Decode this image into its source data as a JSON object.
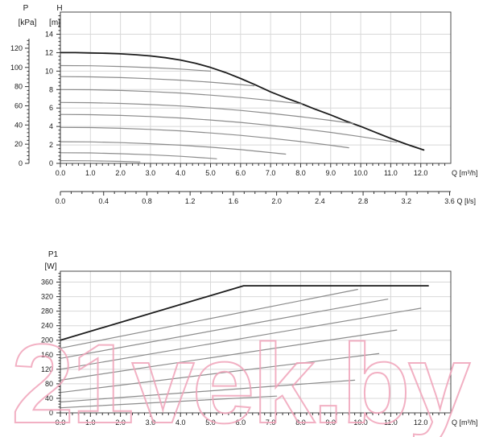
{
  "watermark": {
    "text": "21vek.by",
    "color": "rgba(240,162,184,0.85)"
  },
  "palette": {
    "max_curve": "#1c1c1c",
    "speed_curve": "#8c8c8c",
    "grid": "#d8d8d8",
    "frame": "#4a4a4a",
    "tick": "#333333"
  },
  "chart_data": [
    {
      "type": "line",
      "id": "head_capacity",
      "title": "",
      "legend": "none",
      "grid": "on",
      "x_axes": [
        {
          "label": "Q [m³/h]",
          "min": 0,
          "max": 13.0,
          "major_step": 1.0,
          "minor_step": 0.2,
          "labeled_max": 12,
          "decimals": 1
        },
        {
          "label": "Q [l/s]",
          "min": 0,
          "max": 3.6,
          "major_step": 0.4,
          "minor_step": 0.1,
          "labeled_max": 3.6,
          "decimals": 1,
          "to_primary_ratio": 3.6
        }
      ],
      "y_axes": [
        {
          "title": "P",
          "unit": "[kPa]",
          "min": 0,
          "max": 130,
          "major_step": 20,
          "minor_step": 4,
          "labeled_max": 120,
          "decimals": 0
        },
        {
          "title": "H",
          "unit": "[m]",
          "min": 0,
          "max": 16.4,
          "major_step": 2,
          "minor_step": 0.4,
          "labeled_max": 14,
          "decimals": 0
        }
      ],
      "series": [
        {
          "name": "max-curve",
          "role": "max",
          "points": [
            [
              0,
              12.0
            ],
            [
              0.5,
              12.0
            ],
            [
              1,
              11.97
            ],
            [
              1.5,
              11.93
            ],
            [
              2,
              11.87
            ],
            [
              2.5,
              11.78
            ],
            [
              3,
              11.65
            ],
            [
              3.5,
              11.45
            ],
            [
              4,
              11.2
            ],
            [
              4.5,
              10.85
            ],
            [
              5,
              10.4
            ],
            [
              5.5,
              9.85
            ],
            [
              6,
              9.2
            ],
            [
              6.5,
              8.5
            ],
            [
              7,
              7.75
            ],
            [
              7.5,
              7.1
            ],
            [
              8,
              6.5
            ],
            [
              8.5,
              5.85
            ],
            [
              9,
              5.25
            ],
            [
              9.5,
              4.6
            ],
            [
              10,
              4.0
            ],
            [
              10.5,
              3.35
            ],
            [
              11,
              2.7
            ],
            [
              11.5,
              2.1
            ],
            [
              12.1,
              1.45
            ]
          ]
        },
        {
          "name": "speed-curve-1",
          "role": "speed",
          "points": [
            [
              0,
              10.6
            ],
            [
              1,
              10.58
            ],
            [
              2,
              10.5
            ],
            [
              3,
              10.38
            ],
            [
              4,
              10.22
            ],
            [
              5,
              10.0
            ]
          ]
        },
        {
          "name": "speed-curve-2",
          "role": "speed",
          "points": [
            [
              0,
              9.4
            ],
            [
              1,
              9.38
            ],
            [
              2,
              9.3
            ],
            [
              3,
              9.18
            ],
            [
              4,
              9.02
            ],
            [
              5,
              8.8
            ],
            [
              6,
              8.54
            ],
            [
              6.45,
              8.4
            ]
          ]
        },
        {
          "name": "speed-curve-3",
          "role": "speed",
          "points": [
            [
              0,
              8.0
            ],
            [
              1,
              7.98
            ],
            [
              2,
              7.9
            ],
            [
              3,
              7.78
            ],
            [
              4,
              7.62
            ],
            [
              5,
              7.4
            ],
            [
              6,
              7.14
            ],
            [
              7,
              6.82
            ],
            [
              8.05,
              6.44
            ]
          ]
        },
        {
          "name": "speed-curve-4",
          "role": "speed",
          "points": [
            [
              0,
              6.6
            ],
            [
              1,
              6.58
            ],
            [
              2,
              6.5
            ],
            [
              3,
              6.38
            ],
            [
              4,
              6.22
            ],
            [
              5,
              6.0
            ],
            [
              6,
              5.74
            ],
            [
              7,
              5.42
            ],
            [
              8,
              5.06
            ],
            [
              9,
              4.66
            ],
            [
              9.75,
              4.32
            ]
          ]
        },
        {
          "name": "speed-curve-5",
          "role": "speed",
          "points": [
            [
              0,
              5.3
            ],
            [
              1,
              5.28
            ],
            [
              2,
              5.2
            ],
            [
              3,
              5.08
            ],
            [
              4,
              4.92
            ],
            [
              5,
              4.7
            ],
            [
              6,
              4.44
            ],
            [
              7,
              4.12
            ],
            [
              8,
              3.76
            ],
            [
              9,
              3.36
            ],
            [
              10,
              2.9
            ],
            [
              11.2,
              2.29
            ]
          ]
        },
        {
          "name": "speed-curve-6",
          "role": "speed",
          "points": [
            [
              0,
              3.9
            ],
            [
              1,
              3.88
            ],
            [
              2,
              3.8
            ],
            [
              3,
              3.68
            ],
            [
              4,
              3.52
            ],
            [
              5,
              3.3
            ],
            [
              6,
              3.04
            ],
            [
              7,
              2.72
            ],
            [
              8,
              2.36
            ],
            [
              9,
              1.96
            ],
            [
              9.6,
              1.69
            ]
          ]
        },
        {
          "name": "speed-curve-7",
          "role": "speed",
          "points": [
            [
              0,
              2.35
            ],
            [
              1,
              2.33
            ],
            [
              2,
              2.25
            ],
            [
              3,
              2.13
            ],
            [
              4,
              1.97
            ],
            [
              5,
              1.75
            ],
            [
              6,
              1.49
            ],
            [
              7,
              1.17
            ],
            [
              7.5,
              1.0
            ]
          ]
        },
        {
          "name": "speed-curve-8",
          "role": "speed",
          "points": [
            [
              0,
              1.15
            ],
            [
              1,
              1.13
            ],
            [
              2,
              1.05
            ],
            [
              3,
              0.93
            ],
            [
              4,
              0.77
            ],
            [
              5,
              0.55
            ],
            [
              5.2,
              0.5
            ]
          ]
        },
        {
          "name": "speed-curve-9",
          "role": "speed",
          "points": [
            [
              0,
              0.3
            ],
            [
              1,
              0.28
            ],
            [
              2,
              0.22
            ],
            [
              2.65,
              0.16
            ]
          ]
        }
      ]
    },
    {
      "type": "line",
      "id": "power",
      "title": "",
      "legend": "none",
      "grid": "on",
      "x_axes": [
        {
          "label": "Q [m³/h]",
          "min": 0,
          "max": 13.0,
          "major_step": 1.0,
          "minor_step": 0.2,
          "labeled_max": 12,
          "decimals": 1
        }
      ],
      "y_axes": [
        {
          "title": "P1",
          "unit": "[W]",
          "min": 0,
          "max": 390,
          "major_step": 40,
          "minor_step": 8,
          "labeled_max": 360,
          "decimals": 0
        }
      ],
      "series": [
        {
          "name": "power-max-curve",
          "role": "max",
          "points": [
            [
              0,
              200
            ],
            [
              6.1,
              350
            ],
            [
              12.25,
              350
            ]
          ]
        },
        {
          "name": "power-curve-1",
          "role": "speed",
          "points": [
            [
              0,
              178
            ],
            [
              9.9,
              340
            ]
          ]
        },
        {
          "name": "power-curve-2",
          "role": "speed",
          "points": [
            [
              0,
              150
            ],
            [
              10.9,
              313
            ]
          ]
        },
        {
          "name": "power-curve-3",
          "role": "speed",
          "points": [
            [
              0,
              120
            ],
            [
              12.0,
              288
            ]
          ]
        },
        {
          "name": "power-curve-4",
          "role": "speed",
          "points": [
            [
              0,
              90
            ],
            [
              11.2,
              228
            ]
          ]
        },
        {
          "name": "power-curve-5",
          "role": "speed",
          "points": [
            [
              0,
              56
            ],
            [
              10.6,
              163
            ]
          ]
        },
        {
          "name": "power-curve-6",
          "role": "speed",
          "points": [
            [
              0,
              30
            ],
            [
              9.8,
              90
            ]
          ]
        },
        {
          "name": "power-curve-7",
          "role": "speed",
          "points": [
            [
              0,
              14
            ],
            [
              7.2,
              46
            ]
          ]
        }
      ]
    }
  ]
}
